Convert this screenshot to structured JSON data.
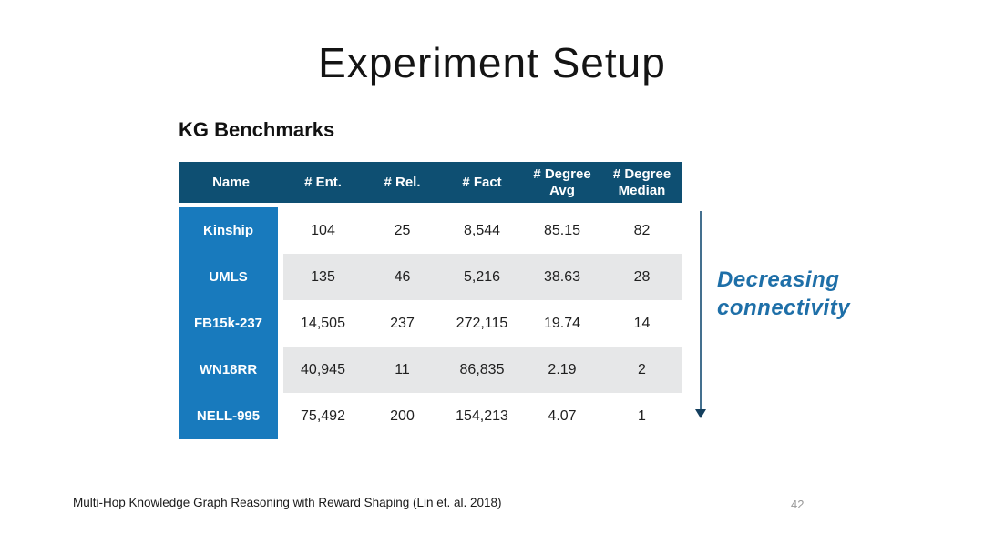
{
  "slide": {
    "title": "Experiment Setup",
    "section_heading": "KG Benchmarks",
    "footer_citation": "Multi-Hop Knowledge Graph Reasoning with Reward Shaping (Lin et. al. 2018)",
    "page_number": "42"
  },
  "table": {
    "columns": [
      "Name",
      "# Ent.",
      "# Rel.",
      "# Fact",
      "# Degree Avg",
      "# Degree Median"
    ],
    "rows": [
      {
        "name": "Kinship",
        "ent": "104",
        "rel": "25",
        "fact": "8,544",
        "degree_avg": "85.15",
        "degree_median": "82"
      },
      {
        "name": "UMLS",
        "ent": "135",
        "rel": "46",
        "fact": "5,216",
        "degree_avg": "38.63",
        "degree_median": "28"
      },
      {
        "name": "FB15k-237",
        "ent": "14,505",
        "rel": "237",
        "fact": "272,115",
        "degree_avg": "19.74",
        "degree_median": "14"
      },
      {
        "name": "WN18RR",
        "ent": "40,945",
        "rel": "11",
        "fact": "86,835",
        "degree_avg": "2.19",
        "degree_median": "2"
      },
      {
        "name": "NELL-995",
        "ent": "75,492",
        "rel": "200",
        "fact": "154,213",
        "degree_avg": "4.07",
        "degree_median": "1"
      }
    ]
  },
  "annotation": {
    "line1": "Decreasing",
    "line2": "connectivity"
  },
  "chart_data": {
    "type": "table",
    "title": "KG Benchmarks",
    "columns": [
      "Name",
      "# Ent.",
      "# Rel.",
      "# Fact",
      "# Degree Avg",
      "# Degree Median"
    ],
    "rows": [
      [
        "Kinship",
        104,
        25,
        8544,
        85.15,
        82
      ],
      [
        "UMLS",
        135,
        46,
        5216,
        38.63,
        28
      ],
      [
        "FB15k-237",
        14505,
        237,
        272115,
        19.74,
        14
      ],
      [
        "WN18RR",
        40945,
        11,
        86835,
        2.19,
        2
      ],
      [
        "NELL-995",
        75492,
        200,
        154213,
        4.07,
        1
      ]
    ],
    "annotation": "Decreasing connectivity (rows ordered top to bottom)"
  },
  "colors": {
    "header_bg": "#0E4F72",
    "row_header_bg": "#187ABD",
    "stripe_bg": "#E6E7E8",
    "annotation_text": "#1E6FA8",
    "arrow": "#44708F",
    "page_number": "#999999"
  }
}
